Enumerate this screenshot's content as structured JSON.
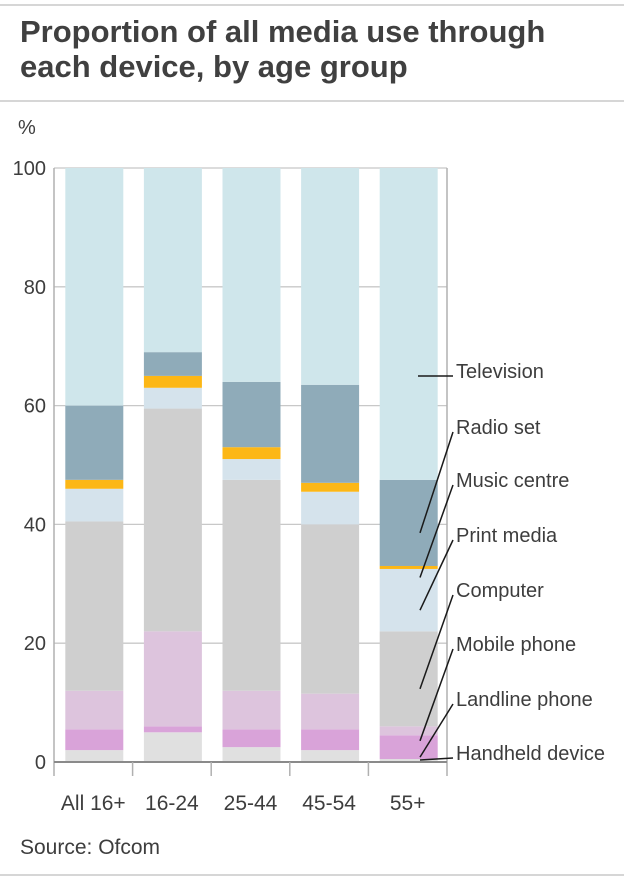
{
  "title": "Proportion of all media use through each device, by age group",
  "source": "Source: Ofcom",
  "chart_data": {
    "type": "bar",
    "stacked": true,
    "title": "Proportion of all media use through each device, by age group",
    "ylabel": "%",
    "xlabel": "",
    "ylim": [
      0,
      100
    ],
    "yticks": [
      0,
      20,
      40,
      60,
      80,
      100
    ],
    "grid": true,
    "legend": "right, labels with leader lines to the 55+ bar",
    "categories": [
      "All 16+",
      "16-24",
      "25-44",
      "45-54",
      "55+"
    ],
    "series": [
      {
        "name": "Handheld device",
        "color": "#e0e0e0",
        "values": [
          2,
          5,
          2.5,
          2,
          0.5
        ]
      },
      {
        "name": "Landline phone",
        "color": "#d9a3d9",
        "values": [
          3.5,
          1,
          3,
          3.5,
          4
        ]
      },
      {
        "name": "Mobile phone",
        "color": "#ddc4dd",
        "values": [
          6.5,
          16,
          6.5,
          6,
          1.5
        ]
      },
      {
        "name": "Computer",
        "color": "#cfcfcf",
        "values": [
          28.5,
          37.5,
          35.5,
          28.5,
          16
        ]
      },
      {
        "name": "Print media",
        "color": "#d5e3ec",
        "values": [
          5.5,
          3.5,
          3.5,
          5.5,
          10.5
        ]
      },
      {
        "name": "Music centre",
        "color": "#fcb716",
        "values": [
          1.5,
          2,
          2,
          1.5,
          0.5
        ]
      },
      {
        "name": "Radio set",
        "color": "#8fabb9",
        "values": [
          12.5,
          4,
          11,
          16.5,
          14.5
        ]
      },
      {
        "name": "Television",
        "color": "#cfe6eb",
        "values": [
          40,
          31,
          36,
          36.5,
          52.5
        ]
      }
    ]
  }
}
